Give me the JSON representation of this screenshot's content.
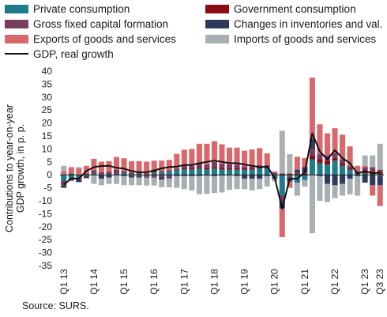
{
  "chart_data": {
    "type": "bar",
    "subtype": "stacked-bar-with-line",
    "ylabel": "Contributions to year-on-year GDP growth, in p. p.",
    "ylim": [
      -35,
      40
    ],
    "yticks": [
      40,
      35,
      30,
      25,
      20,
      15,
      10,
      5,
      0,
      -5,
      -10,
      -15,
      -20,
      -25,
      -30,
      -35
    ],
    "grid": false,
    "legend_position": "top",
    "categories": [
      "Q1 13",
      "Q2 13",
      "Q3 13",
      "Q4 13",
      "Q1 14",
      "Q2 14",
      "Q3 14",
      "Q4 14",
      "Q1 15",
      "Q2 15",
      "Q3 15",
      "Q4 15",
      "Q1 16",
      "Q2 16",
      "Q3 16",
      "Q4 16",
      "Q1 17",
      "Q2 17",
      "Q3 17",
      "Q4 17",
      "Q1 18",
      "Q2 18",
      "Q3 18",
      "Q4 18",
      "Q1 19",
      "Q2 19",
      "Q3 19",
      "Q4 19",
      "Q1 20",
      "Q2 20",
      "Q3 20",
      "Q4 20",
      "Q1 21",
      "Q2 21",
      "Q3 21",
      "Q4 21",
      "Q1 22",
      "Q2 22",
      "Q3 22",
      "Q4 22",
      "Q1 23",
      "Q2 23",
      "Q3 23"
    ],
    "xtick_labels": [
      "Q1 13",
      "Q1 14",
      "Q1 15",
      "Q1 16",
      "Q1 17",
      "Q1 18",
      "Q1 19",
      "Q1 20",
      "Q1 21",
      "Q1 22",
      "Q1 23",
      "Q3 23"
    ],
    "series": [
      {
        "name": "Private consumption",
        "color": "#1d7b8a",
        "values": [
          -2.5,
          -1.5,
          -1.0,
          -0.5,
          0.5,
          0.3,
          0.5,
          0.5,
          0.8,
          0.5,
          0.5,
          0.3,
          1.0,
          1.2,
          1.5,
          2.0,
          2.2,
          2.0,
          2.5,
          2.0,
          2.5,
          2.0,
          2.0,
          2.0,
          2.0,
          2.0,
          2.5,
          2.5,
          -1.0,
          -8.0,
          -0.5,
          -3.0,
          -2.0,
          6.0,
          4.5,
          4.0,
          5.5,
          3.5,
          2.0,
          0.5,
          0.5,
          0.5,
          -0.5
        ]
      },
      {
        "name": "Government consumption",
        "color": "#8b0d14",
        "values": [
          -0.5,
          -0.3,
          -0.3,
          -0.2,
          0.2,
          0.3,
          0.3,
          0.3,
          0.3,
          0.3,
          0.3,
          0.3,
          0.5,
          0.3,
          0.3,
          0.3,
          0.5,
          0.5,
          0.5,
          0.5,
          0.5,
          0.5,
          0.5,
          0.5,
          0.5,
          0.5,
          0.5,
          0.5,
          0.3,
          0.5,
          0.5,
          0.5,
          0.5,
          1.5,
          1.5,
          1.5,
          1.0,
          1.0,
          0.5,
          0.5,
          1.0,
          1.0,
          1.0
        ]
      },
      {
        "name": "Gross fixed capital formation",
        "color": "#7a3d62",
        "values": [
          -1.0,
          -0.5,
          -0.5,
          0.5,
          0.5,
          0.5,
          0.5,
          0.8,
          0.3,
          -0.5,
          -0.5,
          -0.8,
          -0.8,
          -1.0,
          -0.8,
          0.3,
          1.0,
          1.0,
          1.5,
          1.5,
          2.0,
          1.8,
          1.5,
          1.5,
          0.8,
          0.8,
          0.8,
          0.8,
          0.5,
          -2.0,
          -0.5,
          0.5,
          0.5,
          2.5,
          2.0,
          2.0,
          2.0,
          1.5,
          1.0,
          0.5,
          1.5,
          1.5,
          1.0
        ]
      },
      {
        "name": "Changes in inventories and val.",
        "color": "#2e3a5c",
        "values": [
          -1.0,
          0.5,
          -1.0,
          -0.5,
          0.5,
          -1.5,
          -1.0,
          0.3,
          -0.5,
          -0.5,
          -0.5,
          -0.3,
          -0.3,
          -0.8,
          -0.5,
          -0.5,
          -0.5,
          -0.5,
          -0.5,
          -0.3,
          -0.5,
          -0.3,
          -0.3,
          -0.5,
          -1.5,
          -1.5,
          -1.5,
          -0.5,
          -0.5,
          -3.0,
          -1.5,
          1.0,
          2.0,
          4.0,
          -0.5,
          -3.5,
          -4.0,
          -3.5,
          -1.5,
          -0.5,
          -3.0,
          -4.0,
          -3.5
        ]
      },
      {
        "name": "Exports of goods and services",
        "color": "#d9686c",
        "values": [
          1.5,
          2.5,
          2.5,
          3.0,
          4.5,
          4.0,
          4.0,
          5.0,
          5.0,
          4.5,
          4.5,
          4.5,
          4.0,
          4.0,
          4.0,
          5.5,
          6.0,
          6.5,
          7.5,
          8.0,
          8.0,
          7.5,
          6.5,
          6.5,
          6.0,
          6.5,
          6.5,
          4.5,
          0.5,
          -11.0,
          -2.5,
          5.0,
          3.5,
          23.5,
          11.5,
          8.5,
          9.5,
          9.5,
          7.5,
          2.0,
          0.5,
          -4.0,
          -8.0
        ]
      },
      {
        "name": "Imports of goods and services",
        "color": "#a9b0b4",
        "values": [
          2.0,
          0.0,
          0.5,
          -0.3,
          -3.5,
          -2.5,
          -2.5,
          -3.5,
          -3.5,
          -3.0,
          -3.0,
          -3.0,
          -3.0,
          -3.0,
          -3.5,
          -4.5,
          -5.0,
          -5.5,
          -7.0,
          -7.0,
          -6.5,
          -6.5,
          -5.5,
          -5.0,
          -4.0,
          -4.5,
          -4.0,
          -4.0,
          -1.0,
          16.5,
          7.5,
          -5.0,
          -2.5,
          -22.5,
          -9.5,
          -7.0,
          -5.0,
          -4.5,
          -6.0,
          -7.5,
          4.0,
          4.5,
          10.0
        ]
      }
    ],
    "line": {
      "name": "GDP, real growth",
      "color": "#111111",
      "values": [
        -3.8,
        -1.3,
        -1.5,
        1.5,
        3.0,
        3.4,
        3.5,
        2.7,
        2.4,
        1.5,
        1.0,
        1.0,
        1.7,
        2.5,
        3.0,
        3.2,
        3.8,
        3.8,
        4.5,
        5.0,
        5.5,
        5.0,
        4.5,
        4.5,
        4.0,
        3.5,
        3.0,
        3.2,
        -1.0,
        -13.0,
        -1.5,
        -1.5,
        1.0,
        16.0,
        9.0,
        6.0,
        9.5,
        6.5,
        4.5,
        0.5,
        1.5,
        0.5,
        1.0
      ]
    }
  },
  "footer": {
    "source": "Source: SURS."
  }
}
